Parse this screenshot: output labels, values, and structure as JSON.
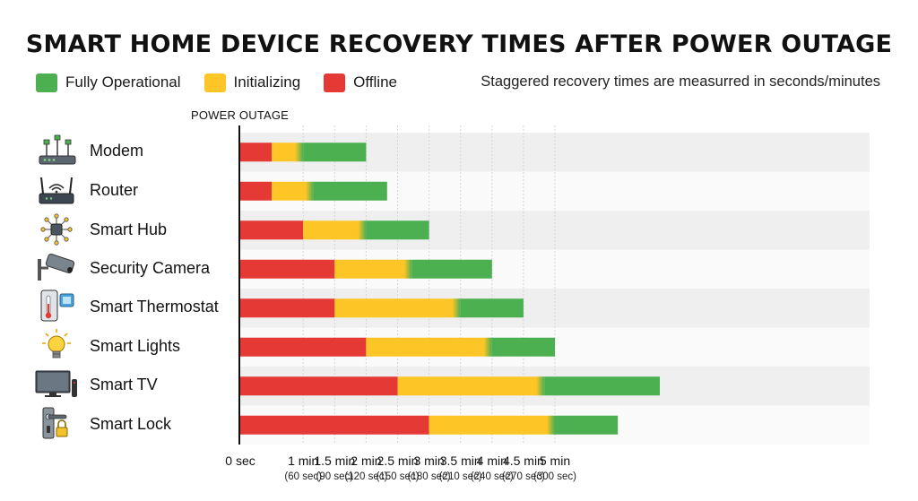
{
  "title": "SMART HOME DEVICE RECOVERY TIMES AFTER POWER OUTAGE",
  "note": "Staggered recovery times are measurred in seconds/minutes",
  "outage_label": "POWER OUTAGE",
  "colors": {
    "operational": "#4caf50",
    "initializing": "#fdc526",
    "offline": "#e53935"
  },
  "chart_data": {
    "type": "bar",
    "orientation": "horizontal",
    "stacked": true,
    "x_unit": "seconds",
    "xlim": [
      0,
      300
    ],
    "categories": [
      "Modem",
      "Router",
      "Smart Hub",
      "Security Camera",
      "Smart Thermostat",
      "Smart Lights",
      "Smart TV",
      "Smart Lock"
    ],
    "series": [
      {
        "name": "Offline",
        "color": "#e53935",
        "values": [
          15,
          15,
          30,
          45,
          45,
          60,
          75,
          90
        ]
      },
      {
        "name": "Initializing",
        "color": "#fdc526",
        "values": [
          15,
          20,
          30,
          37,
          60,
          60,
          70,
          60
        ]
      },
      {
        "name": "Fully Operational",
        "color": "#4caf50",
        "values": [
          30,
          35,
          30,
          38,
          30,
          30,
          55,
          30
        ]
      }
    ],
    "legend": [
      "Fully Operational",
      "Initializing",
      "Offline"
    ],
    "legend_position": "top",
    "ticks": [
      {
        "value": 0,
        "label": "0 sec",
        "sub": ""
      },
      {
        "value": 30,
        "label": "1 min",
        "sub": "(60 sec)"
      },
      {
        "value": 45,
        "label": "1.5 min",
        "sub": "(90 sec)"
      },
      {
        "value": 60,
        "label": "2 min",
        "sub": "(120 sec)"
      },
      {
        "value": 75,
        "label": "2.5 min",
        "sub": "(150 sec)"
      },
      {
        "value": 90,
        "label": "3 min",
        "sub": "(180 sec)"
      },
      {
        "value": 105,
        "label": "3.5 min",
        "sub": "(210 sec)"
      },
      {
        "value": 120,
        "label": "4 min",
        "sub": "(240 sec)"
      },
      {
        "value": 135,
        "label": "4.5 min",
        "sub": "(270 sec)"
      },
      {
        "value": 150,
        "label": "5 min",
        "sub": "(300 sec)"
      }
    ],
    "grid": true
  },
  "devices": [
    {
      "label": "Modem",
      "icon": "modem-icon"
    },
    {
      "label": "Router",
      "icon": "router-icon"
    },
    {
      "label": "Smart Hub",
      "icon": "hub-icon"
    },
    {
      "label": "Security Camera",
      "icon": "camera-icon"
    },
    {
      "label": "Smart Thermostat",
      "icon": "thermostat-icon"
    },
    {
      "label": "Smart Lights",
      "icon": "lightbulb-icon"
    },
    {
      "label": "Smart TV",
      "icon": "tv-icon"
    },
    {
      "label": "Smart Lock",
      "icon": "lock-icon"
    }
  ]
}
